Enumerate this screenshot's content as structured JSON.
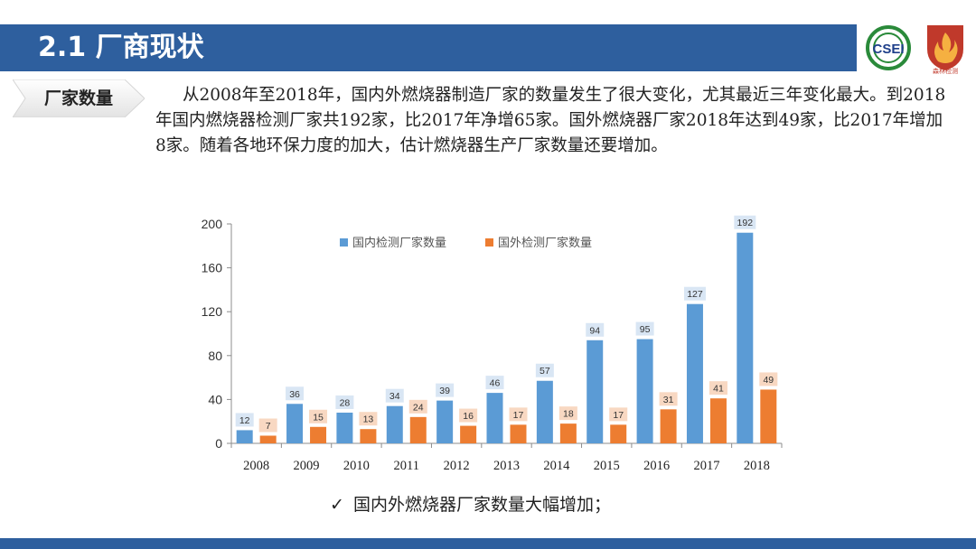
{
  "header": {
    "title": "2.1 厂商现状"
  },
  "logos": {
    "csei": {
      "text": "CSEI"
    },
    "seal": {
      "text": "森林检测",
      "icon": "flame-shield-icon"
    }
  },
  "tag": {
    "label": "厂家数量"
  },
  "paragraph": "从2008年至2018年，国内外燃烧器制造厂家的数量发生了很大变化，尤其最近三年变化最大。到2018年国内燃烧器检测厂家共192家，比2017年净增65家。国外燃烧器厂家2018年达到49家，比2017年增加8家。随着各地环保力度的加大，估计燃烧器生产厂家数量还要增加。",
  "conclusion": "国内外燃烧器厂家数量大幅增加；",
  "colors": {
    "accent": "#2e5f9e",
    "series1": "#5b9bd5",
    "series2": "#ed7d31"
  },
  "chart_data": {
    "type": "bar",
    "categories": [
      "2008",
      "2009",
      "2010",
      "2011",
      "2012",
      "2013",
      "2014",
      "2015",
      "2016",
      "2017",
      "2018"
    ],
    "series": [
      {
        "name": "国内检测厂家数量",
        "values": [
          12,
          36,
          28,
          34,
          39,
          46,
          57,
          94,
          95,
          127,
          192
        ]
      },
      {
        "name": "国外检测厂家数量",
        "values": [
          7,
          15,
          13,
          24,
          16,
          17,
          18,
          17,
          31,
          41,
          49
        ]
      }
    ],
    "yticks": [
      0,
      40,
      80,
      120,
      160,
      200
    ],
    "ylim": [
      0,
      200
    ],
    "legend": "top-center",
    "grid": false
  }
}
